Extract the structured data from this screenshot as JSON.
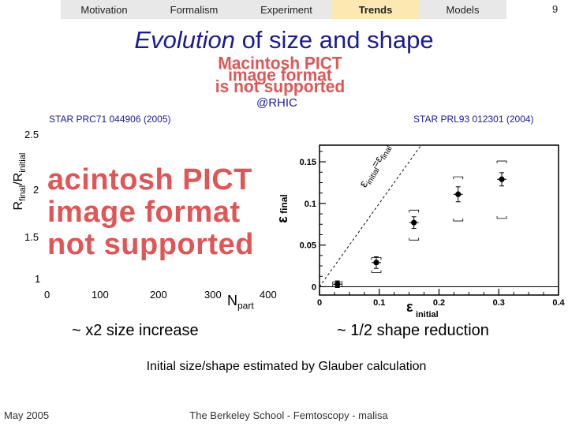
{
  "nav": {
    "tabs": [
      {
        "label": "Motivation",
        "active": false
      },
      {
        "label": "Formalism",
        "active": false
      },
      {
        "label": "Experiment",
        "active": false
      },
      {
        "label": "Trends",
        "active": true
      },
      {
        "label": "Models",
        "active": false
      }
    ],
    "page_number": "9",
    "active_color": "#fce8b0"
  },
  "title": {
    "part1": "Evolution",
    "part2": " of size and shape",
    "color": "#1a1a9a"
  },
  "pict_placeholder": {
    "lines": [
      "Macintosh PICT",
      "image format",
      "is not supported"
    ],
    "color": "#e05555"
  },
  "rhic_label": "@RHIC",
  "references": {
    "left": "STAR PRC71 044906 (2005)",
    "right": "STAR PRL93 012301 (2004)"
  },
  "chart_data": [
    {
      "type": "scatter",
      "title": "",
      "ylabel_main": "R",
      "ylabel_sub1": "final",
      "ylabel_mid": "/R",
      "ylabel_sub2": "initial",
      "xlabel_main": "N",
      "xlabel_sub": "part",
      "ytick_labels": [
        "2.5",
        "2",
        "1.5",
        "1"
      ],
      "xtick_labels": [
        "0",
        "100",
        "200",
        "300",
        "400"
      ],
      "note": "plot body is an unsupported PICT image placeholder",
      "placeholder_lines": [
        "acintosh PICT",
        "image format",
        "not supported"
      ]
    },
    {
      "type": "scatter",
      "title": "",
      "xlabel": "ε initial",
      "ylabel": "ε final",
      "xlim": [
        0,
        0.4
      ],
      "ylim": [
        -0.01,
        0.17
      ],
      "xtick_labels": [
        "0",
        "0.1",
        "0.2",
        "0.3",
        "0.4"
      ],
      "ytick_labels": [
        "0",
        "0.05",
        "0.1",
        "0.15"
      ],
      "diagonal_label": "εinitial=εfinal",
      "series": [
        {
          "points": [
            {
              "x": 0.03,
              "y": 0.003,
              "ystat": 0.004,
              "ysys_lo": 0.003,
              "ysys_hi": 0.003
            },
            {
              "x": 0.095,
              "y": 0.029,
              "ystat": 0.007,
              "ysys_lo": 0.012,
              "ysys_hi": 0.006
            },
            {
              "x": 0.158,
              "y": 0.077,
              "ystat": 0.007,
              "ysys_lo": 0.021,
              "ysys_hi": 0.015
            },
            {
              "x": 0.232,
              "y": 0.111,
              "ystat": 0.009,
              "ysys_lo": 0.032,
              "ysys_hi": 0.021
            },
            {
              "x": 0.305,
              "y": 0.129,
              "ystat": 0.008,
              "ysys_lo": 0.047,
              "ysys_hi": 0.022
            }
          ]
        }
      ]
    }
  ],
  "captions": {
    "left": "~ x2 size increase",
    "right": "~ 1/2 shape reduction"
  },
  "glauber_note": "Initial size/shape estimated by Glauber calculation",
  "footer": {
    "date": "May 2005",
    "center": "The Berkeley School - Femtoscopy - malisa"
  }
}
